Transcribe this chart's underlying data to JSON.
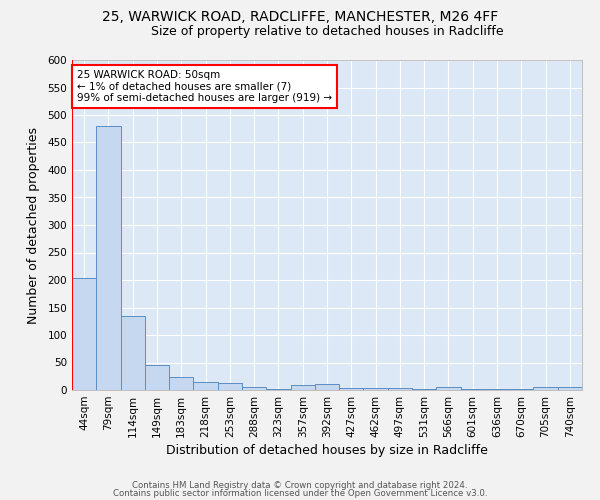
{
  "title_line1": "25, WARWICK ROAD, RADCLIFFE, MANCHESTER, M26 4FF",
  "title_line2": "Size of property relative to detached houses in Radcliffe",
  "xlabel": "Distribution of detached houses by size in Radcliffe",
  "ylabel": "Number of detached properties",
  "categories": [
    "44sqm",
    "79sqm",
    "114sqm",
    "149sqm",
    "183sqm",
    "218sqm",
    "253sqm",
    "288sqm",
    "323sqm",
    "357sqm",
    "392sqm",
    "427sqm",
    "462sqm",
    "497sqm",
    "531sqm",
    "566sqm",
    "601sqm",
    "636sqm",
    "670sqm",
    "705sqm",
    "740sqm"
  ],
  "values": [
    203,
    480,
    135,
    45,
    23,
    15,
    13,
    5,
    2,
    10,
    11,
    4,
    3,
    3,
    1,
    6,
    1,
    1,
    1,
    6,
    5
  ],
  "bar_color": "#c5d8f0",
  "bar_edge_color": "#5b8ec4",
  "annotation_text": "25 WARWICK ROAD: 50sqm\n← 1% of detached houses are smaller (7)\n99% of semi-detached houses are larger (919) →",
  "annotation_box_color": "white",
  "annotation_box_edge_color": "red",
  "footer_line1": "Contains HM Land Registry data © Crown copyright and database right 2024.",
  "footer_line2": "Contains public sector information licensed under the Open Government Licence v3.0.",
  "ylim": [
    0,
    600
  ],
  "yticks": [
    0,
    50,
    100,
    150,
    200,
    250,
    300,
    350,
    400,
    450,
    500,
    550,
    600
  ],
  "fig_bg_color": "#f2f2f2",
  "plot_bg_color": "#dce8f5",
  "grid_color": "#ffffff",
  "title_fontsize": 10,
  "subtitle_fontsize": 9,
  "tick_fontsize": 7.5,
  "label_fontsize": 9
}
